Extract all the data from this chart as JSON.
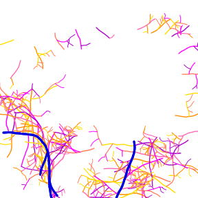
{
  "background_color": "#ffffff",
  "figsize": [
    2.88,
    2.88
  ],
  "dpi": 100,
  "colors": {
    "mainstem": "#0000dd",
    "magenta": "#ff00ff",
    "purple": "#aa00cc",
    "pink": "#ff69b4",
    "orange": "#ff8c00",
    "yellow": "#ffdd00",
    "salmon": "#ff8060"
  },
  "lw_main": 2.2,
  "lw_trib": 1.2
}
